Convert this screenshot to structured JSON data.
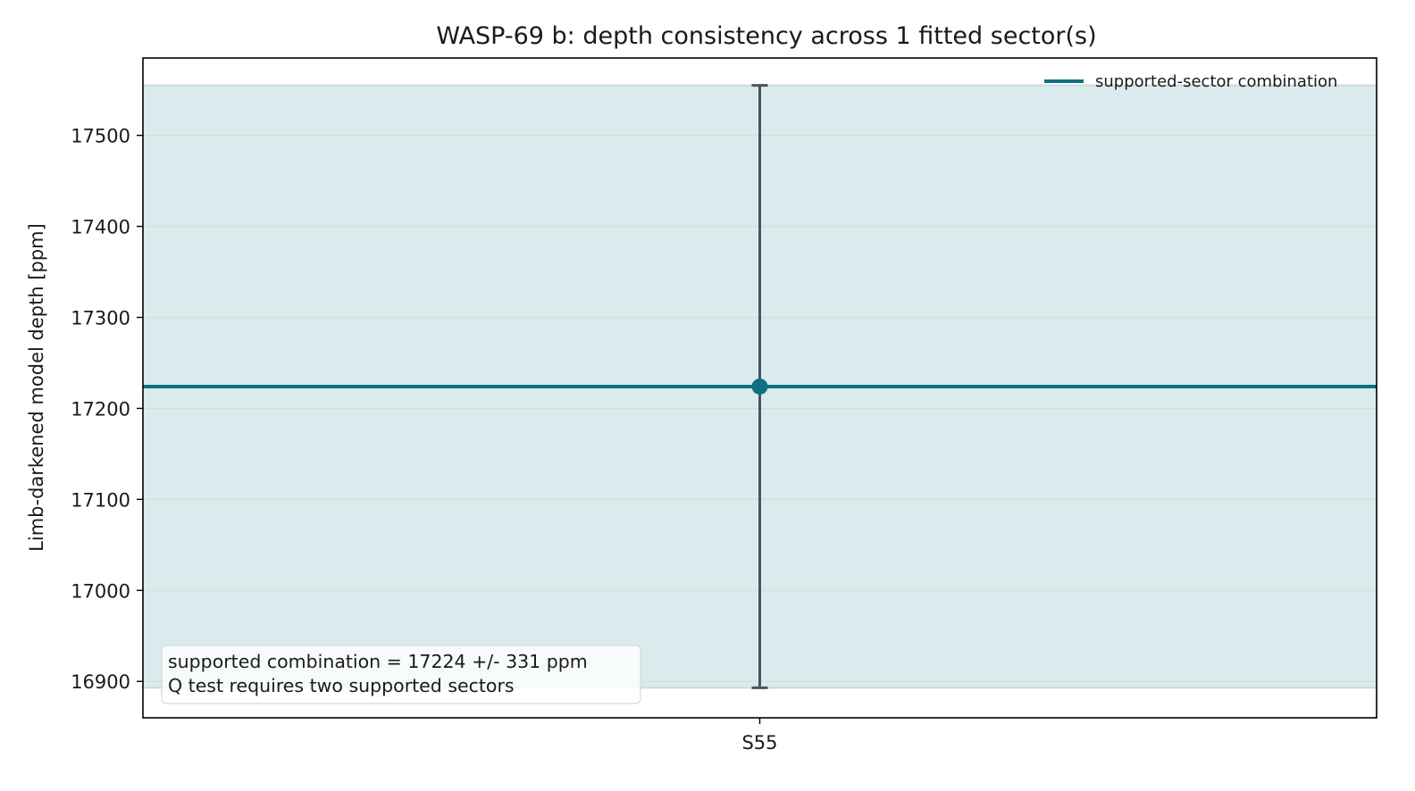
{
  "chart_data": {
    "type": "scatter",
    "title": "WASP-69 b: depth consistency across 1 fitted sector(s)",
    "xlabel": "",
    "ylabel": "Limb-darkened model depth [ppm]",
    "categories": [
      "S55"
    ],
    "series": [
      {
        "values": [
          17224
        ],
        "errors": [
          331
        ]
      }
    ],
    "combination": {
      "label": "supported-sector combination",
      "value": 17224,
      "error": 331
    },
    "ylim": [
      16860,
      17585
    ],
    "yticks": [
      16900,
      17000,
      17100,
      17200,
      17300,
      17400,
      17500
    ],
    "grid": "y",
    "legend": {
      "position": "top-right"
    },
    "annotation": {
      "lines": [
        "supported combination = 17224 +/- 331 ppm",
        "Q test requires two supported sectors"
      ],
      "position": "bottom-left"
    },
    "colors": {
      "line": "#0e6f80",
      "band": "#dbeaed",
      "errorbar": "#4a5560",
      "marker": "#0e6f80",
      "grid": "#cfe0dc"
    }
  }
}
